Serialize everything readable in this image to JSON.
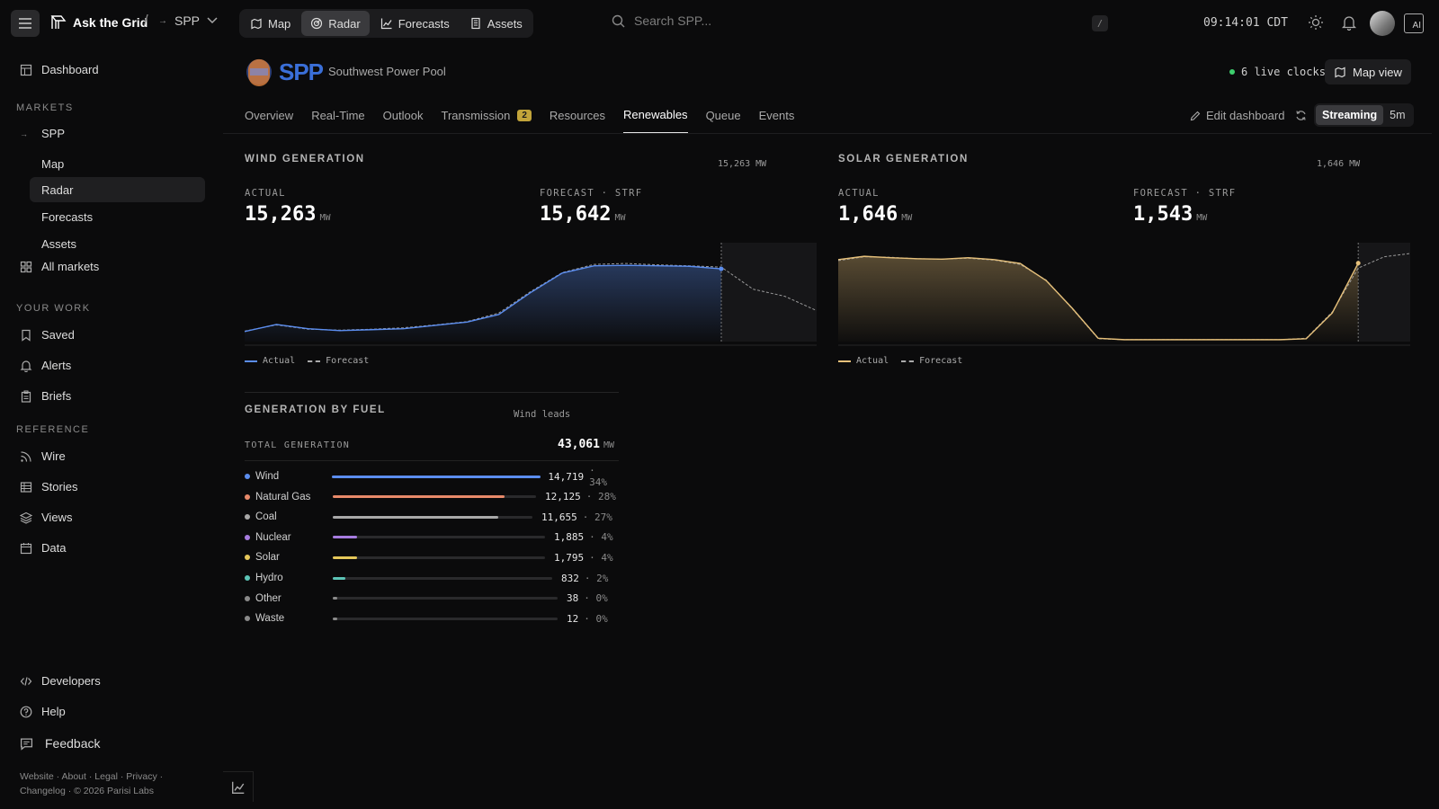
{
  "app": {
    "name": "Ask the Grid",
    "market": "SPP",
    "clock": "09:14:01 CDT",
    "search_placeholder": "Search SPP...",
    "search_kbd": "/",
    "ai_label": "AI"
  },
  "topnav": [
    {
      "label": "Map",
      "icon": "map-icon",
      "active": false
    },
    {
      "label": "Radar",
      "icon": "radar-icon",
      "active": true
    },
    {
      "label": "Forecasts",
      "icon": "chart-line-icon",
      "active": false
    },
    {
      "label": "Assets",
      "icon": "building-icon",
      "active": false
    }
  ],
  "sidebar": {
    "dashboard": "Dashboard",
    "markets_heading": "MARKETS",
    "market": "SPP",
    "market_items": [
      "Map",
      "Radar",
      "Forecasts",
      "Assets"
    ],
    "all_markets": "All markets",
    "your_work_heading": "YOUR WORK",
    "your_work": [
      "Saved",
      "Alerts",
      "Briefs"
    ],
    "reference_heading": "REFERENCE",
    "reference": [
      "Wire",
      "Stories",
      "Views",
      "Data"
    ],
    "bottom": [
      "Developers",
      "Help",
      "Feedback"
    ],
    "footer_line1": "Website · About · Legal · Privacy ·",
    "footer_line2": "Changelog · © 2026 Parisi Labs"
  },
  "header": {
    "logo_text": "SPP",
    "region_name": "Southwest Power Pool",
    "live_clocks": "6 live clocks",
    "map_view": "Map view",
    "edit_dashboard": "Edit dashboard",
    "tabs": [
      "Overview",
      "Real-Time",
      "Outlook",
      "Transmission",
      "Resources",
      "Renewables",
      "Queue",
      "Events"
    ],
    "transmission_badge": "2",
    "active_tab": "Renewables",
    "stream_options": [
      "Streaming",
      "5m"
    ]
  },
  "wind": {
    "title": "WIND GENERATION",
    "latest": "15,263 MW",
    "actual_label": "ACTUAL",
    "actual_value": "15,263",
    "forecast_label": "FORECAST · STRF",
    "forecast_value": "15,642",
    "unit": "MW",
    "legend_actual": "Actual",
    "legend_forecast": "Forecast"
  },
  "solar": {
    "title": "SOLAR GENERATION",
    "latest": "1,646 MW",
    "actual_label": "ACTUAL",
    "actual_value": "1,646",
    "forecast_label": "FORECAST · STRF",
    "forecast_value": "1,543",
    "unit": "MW",
    "legend_actual": "Actual",
    "legend_forecast": "Forecast"
  },
  "fuel": {
    "title": "GENERATION BY FUEL",
    "note": "Wind leads",
    "total_label": "TOTAL GENERATION",
    "total_value": "43,061",
    "unit": "MW",
    "rows": [
      {
        "name": "Wind",
        "value": "14,719",
        "pct": "34%",
        "share": 0.34,
        "color": "#5b8def"
      },
      {
        "name": "Natural Gas",
        "value": "12,125",
        "pct": "28%",
        "share": 0.28,
        "color": "#e8896a"
      },
      {
        "name": "Coal",
        "value": "11,655",
        "pct": "27%",
        "share": 0.27,
        "color": "#a8a8a8"
      },
      {
        "name": "Nuclear",
        "value": "1,885",
        "pct": "4%",
        "share": 0.04,
        "color": "#a77ce0"
      },
      {
        "name": "Solar",
        "value": "1,795",
        "pct": "4%",
        "share": 0.04,
        "color": "#e6c85a"
      },
      {
        "name": "Hydro",
        "value": "832",
        "pct": "2%",
        "share": 0.02,
        "color": "#5cc4b6"
      },
      {
        "name": "Other",
        "value": "38",
        "pct": "0%",
        "share": 0.0,
        "color": "#8a8a8a"
      },
      {
        "name": "Waste",
        "value": "12",
        "pct": "0%",
        "share": 0.0,
        "color": "#8a8a8a"
      }
    ]
  },
  "colors": {
    "wind": "#5b8def",
    "solar": "#e6c07a",
    "live": "#3ecf6e",
    "badge": "#c2a43a"
  },
  "chart_data": [
    {
      "type": "area",
      "series": [
        {
          "name": "Actual",
          "values": [
            2100,
            3600,
            2700,
            2300,
            2500,
            2700,
            3400,
            4100,
            5700,
            10300,
            14400,
            15900,
            16000,
            15900,
            15800,
            15263
          ]
        },
        {
          "name": "Forecast",
          "values": [
            2200,
            3500,
            2600,
            2400,
            2600,
            2900,
            3500,
            4200,
            6000,
            10500,
            14500,
            16200,
            16400,
            16100,
            15900,
            15642,
            11000,
            9500,
            6500
          ]
        }
      ]
    },
    {
      "type": "area",
      "series": [
        {
          "name": "Actual",
          "values": [
            1720,
            1790,
            1760,
            1740,
            1730,
            1760,
            1720,
            1640,
            1280,
            700,
            70,
            40,
            40,
            40,
            40,
            40,
            40,
            40,
            60,
            600,
            1646
          ]
        },
        {
          "name": "Forecast",
          "values": [
            1700,
            1780,
            1770,
            1740,
            1730,
            1750,
            1710,
            1620,
            1290,
            690,
            60,
            40,
            40,
            40,
            40,
            40,
            40,
            40,
            70,
            620,
            1543,
            1780,
            1850
          ]
        }
      ]
    },
    {
      "type": "bar",
      "title": "GENERATION BY FUEL",
      "categories": [
        "Wind",
        "Natural Gas",
        "Coal",
        "Nuclear",
        "Solar",
        "Hydro",
        "Other",
        "Waste"
      ],
      "values": [
        14719,
        12125,
        11655,
        1885,
        1795,
        832,
        38,
        12
      ]
    }
  ]
}
